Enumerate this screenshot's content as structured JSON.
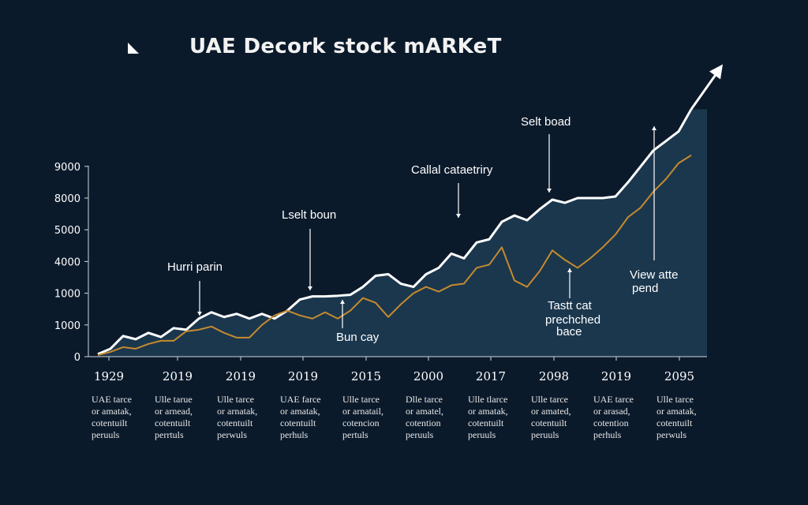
{
  "colors": {
    "background": "#0b1a2b",
    "area_fill": "#1d3b52",
    "primary_line": "#ffffff",
    "secondary_line": "#c58a2e",
    "axis": "#cfd6dc"
  },
  "header": {
    "title": "UAE  Decork stock mARKeT",
    "icon": "cursor-corner-icon"
  },
  "chart_data": {
    "type": "line",
    "title": "UAE  Decork stock mARKeT",
    "xlabel": "",
    "ylabel": "",
    "yticks": [
      "0",
      "1000",
      "1000",
      "4000",
      "5000",
      "8000",
      "9000"
    ],
    "xticks": [
      "1929",
      "2019",
      "2019",
      "2019",
      "2015",
      "2000",
      "2017",
      "2098",
      "2019",
      "2095"
    ],
    "grid": false,
    "legend": "none",
    "series": [
      {
        "color": "#ffffff",
        "points": [
          [
            0.0,
            0.08
          ],
          [
            0.2,
            0.25
          ],
          [
            0.4,
            0.65
          ],
          [
            0.6,
            0.55
          ],
          [
            0.8,
            0.75
          ],
          [
            1.0,
            0.62
          ],
          [
            1.2,
            0.9
          ],
          [
            1.4,
            0.85
          ],
          [
            1.6,
            1.2
          ],
          [
            1.8,
            1.4
          ],
          [
            2.0,
            1.25
          ],
          [
            2.2,
            1.35
          ],
          [
            2.4,
            1.2
          ],
          [
            2.6,
            1.35
          ],
          [
            2.8,
            1.2
          ],
          [
            3.0,
            1.45
          ],
          [
            3.2,
            1.8
          ],
          [
            3.4,
            1.9
          ],
          [
            3.6,
            1.9
          ],
          [
            3.8,
            1.92
          ],
          [
            4.0,
            1.95
          ],
          [
            4.2,
            2.2
          ],
          [
            4.4,
            2.55
          ],
          [
            4.6,
            2.6
          ],
          [
            4.8,
            2.3
          ],
          [
            5.0,
            2.2
          ],
          [
            5.2,
            2.6
          ],
          [
            5.4,
            2.8
          ],
          [
            5.6,
            3.25
          ],
          [
            5.8,
            3.1
          ],
          [
            6.0,
            3.6
          ],
          [
            6.2,
            3.7
          ],
          [
            6.4,
            4.25
          ],
          [
            6.6,
            4.45
          ],
          [
            6.8,
            4.3
          ],
          [
            7.0,
            4.65
          ],
          [
            7.2,
            4.95
          ],
          [
            7.4,
            4.85
          ],
          [
            7.6,
            5.0
          ],
          [
            7.8,
            5.0
          ],
          [
            8.0,
            5.0
          ],
          [
            8.2,
            5.05
          ],
          [
            8.4,
            5.5
          ],
          [
            8.6,
            6.0
          ],
          [
            8.8,
            6.5
          ],
          [
            9.0,
            6.8
          ],
          [
            9.2,
            7.1
          ],
          [
            9.4,
            7.8
          ]
        ]
      },
      {
        "color": "#c58a2e",
        "points": [
          [
            0.0,
            0.05
          ],
          [
            0.2,
            0.15
          ],
          [
            0.4,
            0.3
          ],
          [
            0.6,
            0.25
          ],
          [
            0.8,
            0.4
          ],
          [
            1.0,
            0.5
          ],
          [
            1.2,
            0.5
          ],
          [
            1.4,
            0.8
          ],
          [
            1.6,
            0.85
          ],
          [
            1.8,
            0.95
          ],
          [
            2.0,
            0.75
          ],
          [
            2.2,
            0.6
          ],
          [
            2.4,
            0.6
          ],
          [
            2.6,
            1.0
          ],
          [
            2.8,
            1.3
          ],
          [
            3.0,
            1.45
          ],
          [
            3.2,
            1.3
          ],
          [
            3.4,
            1.2
          ],
          [
            3.6,
            1.4
          ],
          [
            3.8,
            1.2
          ],
          [
            4.0,
            1.45
          ],
          [
            4.2,
            1.85
          ],
          [
            4.4,
            1.7
          ],
          [
            4.6,
            1.25
          ],
          [
            4.8,
            1.65
          ],
          [
            5.0,
            2.0
          ],
          [
            5.2,
            2.2
          ],
          [
            5.4,
            2.05
          ],
          [
            5.6,
            2.25
          ],
          [
            5.8,
            2.3
          ],
          [
            6.0,
            2.8
          ],
          [
            6.2,
            2.9
          ],
          [
            6.4,
            3.45
          ],
          [
            6.6,
            2.4
          ],
          [
            6.8,
            2.2
          ],
          [
            7.0,
            2.7
          ],
          [
            7.2,
            3.35
          ],
          [
            7.4,
            3.05
          ],
          [
            7.6,
            2.8
          ],
          [
            7.8,
            3.1
          ],
          [
            8.0,
            3.45
          ],
          [
            8.2,
            3.85
          ],
          [
            8.4,
            4.4
          ],
          [
            8.6,
            4.7
          ],
          [
            8.8,
            5.2
          ],
          [
            9.0,
            5.6
          ],
          [
            9.2,
            6.1
          ],
          [
            9.4,
            6.35
          ]
        ]
      }
    ],
    "annotations": [
      {
        "text": "Hurri parin",
        "target": [
          1.6,
          1.2
        ]
      },
      {
        "text": "Lselt boun",
        "target": [
          3.4,
          1.92
        ]
      },
      {
        "text": "Bun cay",
        "target": [
          3.75,
          1.45
        ]
      },
      {
        "text": "Callal cataetriry",
        "target": [
          6.1,
          4.6
        ]
      },
      {
        "text": "Selt boad",
        "target": [
          7.7,
          5.0
        ]
      },
      {
        "text": "Tastt cat prechched bace",
        "target": [
          7.4,
          2.8
        ]
      },
      {
        "text": "View atte pend",
        "target": [
          8.95,
          7.3
        ]
      }
    ]
  },
  "captions": [
    [
      "UAE tarce",
      "or amatak,",
      "cotentuilt",
      "peruuls"
    ],
    [
      "Ulle tarue",
      "or arnead,",
      "cotentuilt",
      "perrtuls"
    ],
    [
      "Ulle tarce",
      "or arnatak,",
      "cotentuilt",
      "perwuls"
    ],
    [
      "UAE farce",
      "or amatak,",
      "cotentuilt",
      "perhuls"
    ],
    [
      "Ulle tarce",
      "or arnatail,",
      "cotencion",
      "pertuls"
    ],
    [
      "Dlle tarce",
      "or amatel,",
      "cotention",
      "peruuls"
    ],
    [
      "Ulle tlarce",
      "or amatak,",
      "cotentuilt",
      "peruuls"
    ],
    [
      "Ulle tarce",
      "or amated,",
      "cotentuilt",
      "peruuls"
    ],
    [
      "UAE tarce",
      "or arasad,",
      "cotention",
      "perhuls"
    ],
    [
      "Ulle tarce",
      "or amatak,",
      "cotentuilt",
      "perwuls"
    ]
  ]
}
